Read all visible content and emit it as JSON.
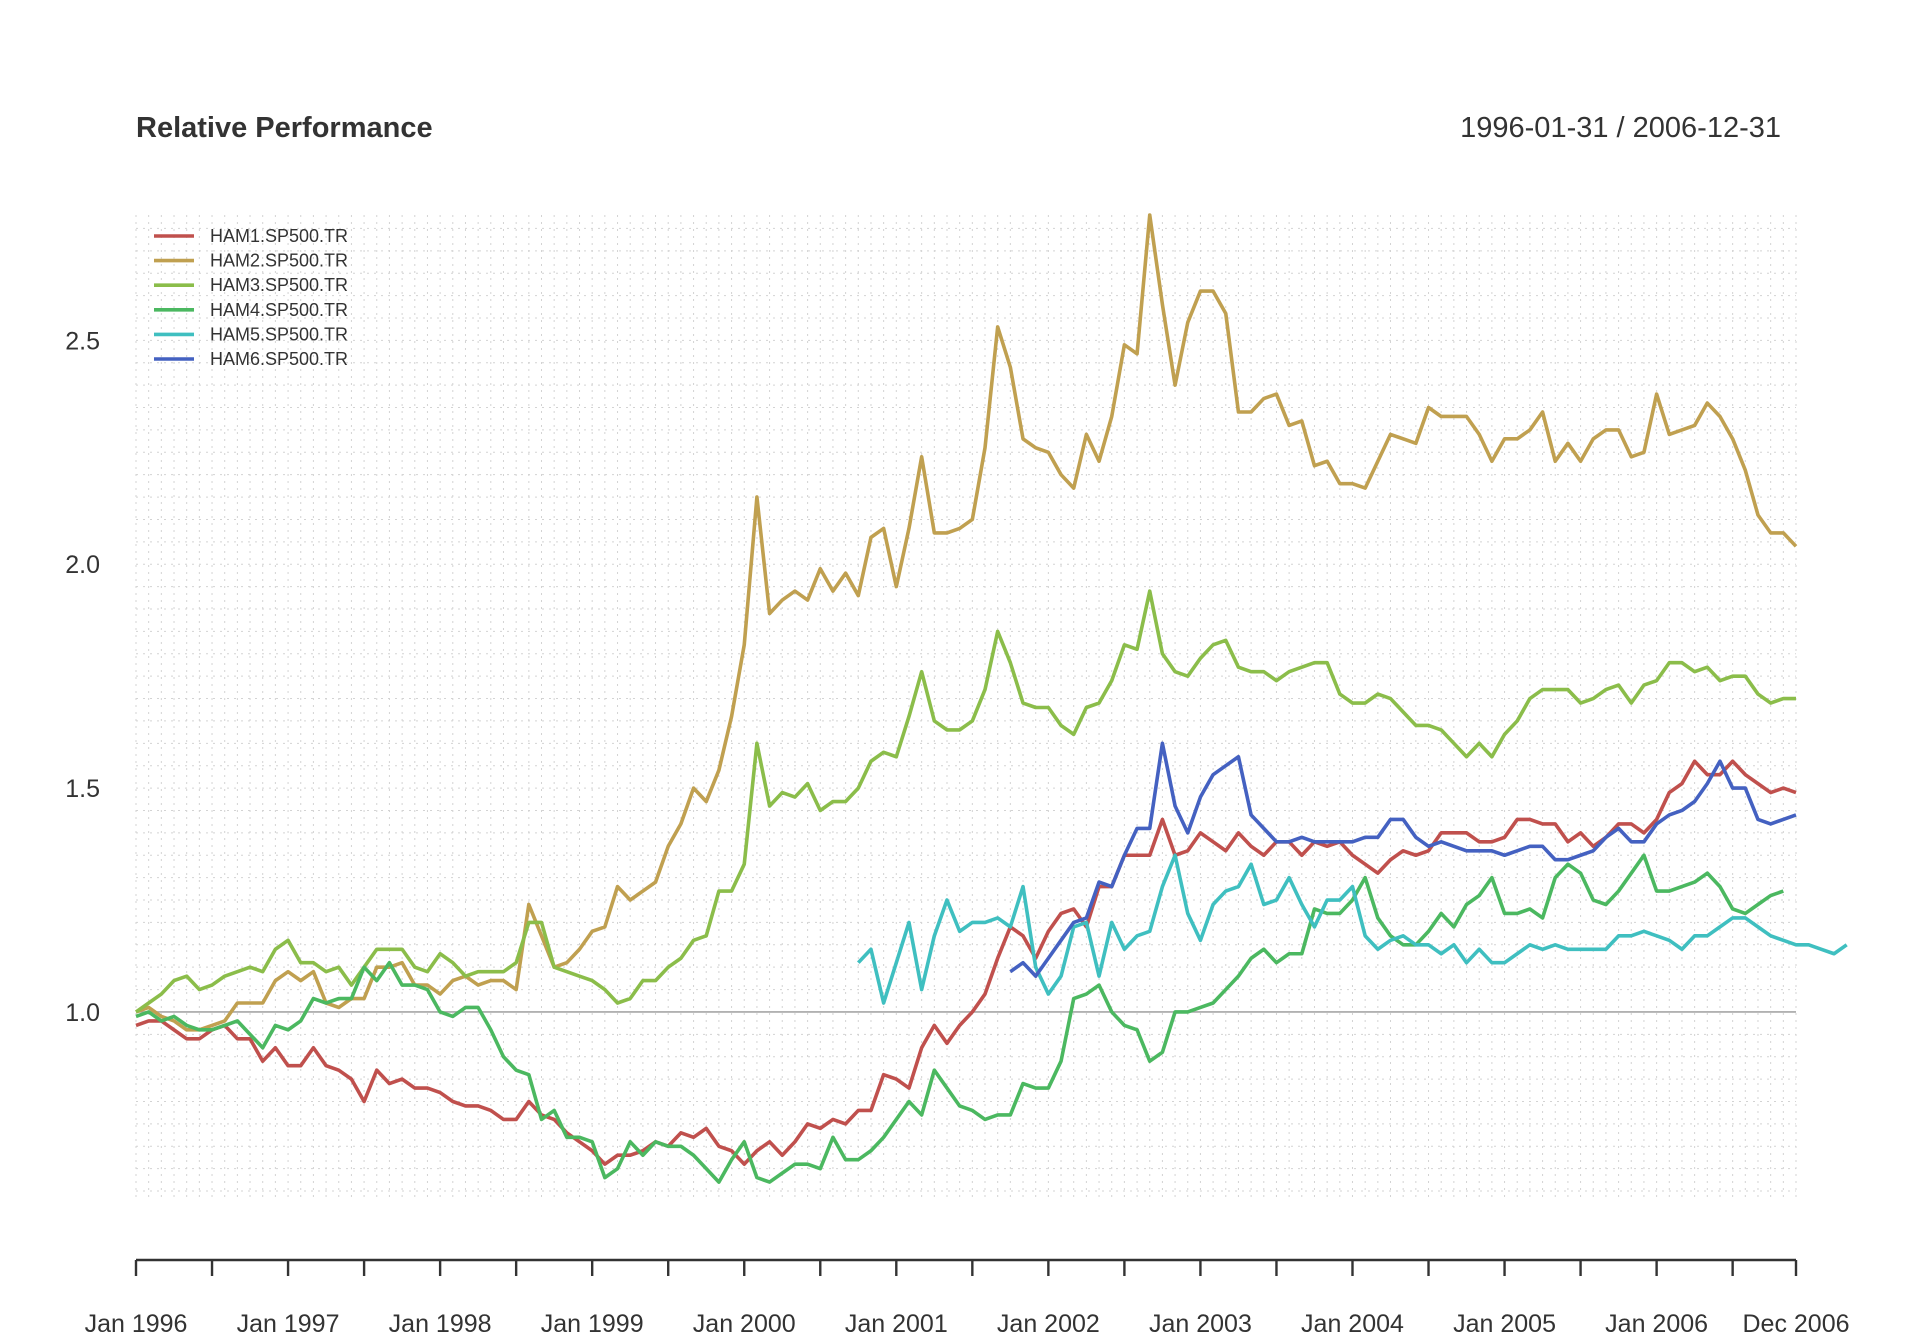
{
  "chart_data": {
    "type": "line",
    "title": "Relative Performance",
    "date_range": "1996-01-31 / 2006-12-31",
    "xlabel": "",
    "ylabel": "",
    "start": "1996-01",
    "x_tick_labels": [
      "Jan 1996",
      "Jan 1997",
      "Jan 1998",
      "Jan 1999",
      "Jan 2000",
      "Jan 2001",
      "Jan 2002",
      "Jan 2003",
      "Jan 2004",
      "Jan 2005",
      "Jan 2006",
      "Dec 2006"
    ],
    "y_ticks": [
      1.0,
      1.5,
      2.0,
      2.5
    ],
    "y_tick_labels": [
      "1.0",
      "1.5",
      "2.0",
      "2.5"
    ],
    "ylim": [
      0.58,
      2.78
    ],
    "reference_line": 1.0,
    "grid": true,
    "legend_position": "top-left",
    "series": [
      {
        "name": "HAM1.SP500.TR",
        "color": "#c0504d",
        "start": "1996-01",
        "values": [
          0.97,
          0.98,
          0.98,
          0.96,
          0.94,
          0.94,
          0.96,
          0.97,
          0.94,
          0.94,
          0.89,
          0.92,
          0.88,
          0.88,
          0.92,
          0.88,
          0.87,
          0.85,
          0.8,
          0.87,
          0.84,
          0.85,
          0.83,
          0.83,
          0.82,
          0.8,
          0.79,
          0.79,
          0.78,
          0.76,
          0.76,
          0.8,
          0.77,
          0.76,
          0.73,
          0.71,
          0.69,
          0.66,
          0.68,
          0.68,
          0.69,
          0.71,
          0.7,
          0.73,
          0.72,
          0.74,
          0.7,
          0.69,
          0.66,
          0.69,
          0.71,
          0.68,
          0.71,
          0.75,
          0.74,
          0.76,
          0.75,
          0.78,
          0.78,
          0.86,
          0.85,
          0.83,
          0.92,
          0.97,
          0.93,
          0.97,
          1.0,
          1.04,
          1.12,
          1.19,
          1.17,
          1.12,
          1.18,
          1.22,
          1.23,
          1.19,
          1.28,
          1.28,
          1.35,
          1.35,
          1.35,
          1.43,
          1.35,
          1.36,
          1.4,
          1.38,
          1.36,
          1.4,
          1.37,
          1.35,
          1.38,
          1.38,
          1.35,
          1.38,
          1.37,
          1.38,
          1.35,
          1.33,
          1.31,
          1.34,
          1.36,
          1.35,
          1.36,
          1.4,
          1.4,
          1.4,
          1.38,
          1.38,
          1.39,
          1.43,
          1.43,
          1.42,
          1.42,
          1.38,
          1.4,
          1.37,
          1.39,
          1.42,
          1.42,
          1.4,
          1.43,
          1.49,
          1.51,
          1.56,
          1.53,
          1.53,
          1.56,
          1.53,
          1.51,
          1.49,
          1.5,
          1.49
        ]
      },
      {
        "name": "HAM2.SP500.TR",
        "color": "#c0a050",
        "start": "1996-01",
        "values": [
          1.0,
          1.01,
          0.99,
          0.98,
          0.96,
          0.96,
          0.97,
          0.98,
          1.02,
          1.02,
          1.02,
          1.07,
          1.09,
          1.07,
          1.09,
          1.02,
          1.01,
          1.03,
          1.03,
          1.1,
          1.1,
          1.11,
          1.06,
          1.06,
          1.04,
          1.07,
          1.08,
          1.06,
          1.07,
          1.07,
          1.05,
          1.24,
          1.17,
          1.1,
          1.11,
          1.14,
          1.18,
          1.19,
          1.28,
          1.25,
          1.27,
          1.29,
          1.37,
          1.42,
          1.5,
          1.47,
          1.54,
          1.66,
          1.82,
          2.15,
          1.89,
          1.92,
          1.94,
          1.92,
          1.99,
          1.94,
          1.98,
          1.93,
          2.06,
          2.08,
          1.95,
          2.08,
          2.24,
          2.07,
          2.07,
          2.08,
          2.1,
          2.26,
          2.53,
          2.44,
          2.28,
          2.26,
          2.25,
          2.2,
          2.17,
          2.29,
          2.23,
          2.33,
          2.49,
          2.47,
          2.78,
          2.58,
          2.4,
          2.54,
          2.61,
          2.61,
          2.56,
          2.34,
          2.34,
          2.37,
          2.38,
          2.31,
          2.32,
          2.22,
          2.23,
          2.18,
          2.18,
          2.17,
          2.23,
          2.29,
          2.28,
          2.27,
          2.35,
          2.33,
          2.33,
          2.33,
          2.29,
          2.23,
          2.28,
          2.28,
          2.3,
          2.34,
          2.23,
          2.27,
          2.23,
          2.28,
          2.3,
          2.3,
          2.24,
          2.25,
          2.38,
          2.29,
          2.3,
          2.31,
          2.36,
          2.33,
          2.28,
          2.21,
          2.11,
          2.07,
          2.07,
          2.04
        ]
      },
      {
        "name": "HAM3.SP500.TR",
        "color": "#8bbd4a",
        "start": "1996-01",
        "values": [
          1.0,
          1.02,
          1.04,
          1.07,
          1.08,
          1.05,
          1.06,
          1.08,
          1.09,
          1.1,
          1.09,
          1.14,
          1.16,
          1.11,
          1.11,
          1.09,
          1.1,
          1.06,
          1.1,
          1.14,
          1.14,
          1.14,
          1.1,
          1.09,
          1.13,
          1.11,
          1.08,
          1.09,
          1.09,
          1.09,
          1.11,
          1.2,
          1.2,
          1.1,
          1.09,
          1.08,
          1.07,
          1.05,
          1.02,
          1.03,
          1.07,
          1.07,
          1.1,
          1.12,
          1.16,
          1.17,
          1.27,
          1.27,
          1.33,
          1.6,
          1.46,
          1.49,
          1.48,
          1.51,
          1.45,
          1.47,
          1.47,
          1.5,
          1.56,
          1.58,
          1.57,
          1.66,
          1.76,
          1.65,
          1.63,
          1.63,
          1.65,
          1.72,
          1.85,
          1.78,
          1.69,
          1.68,
          1.68,
          1.64,
          1.62,
          1.68,
          1.69,
          1.74,
          1.82,
          1.81,
          1.94,
          1.8,
          1.76,
          1.75,
          1.79,
          1.82,
          1.83,
          1.77,
          1.76,
          1.76,
          1.74,
          1.76,
          1.77,
          1.78,
          1.78,
          1.71,
          1.69,
          1.69,
          1.71,
          1.7,
          1.67,
          1.64,
          1.64,
          1.63,
          1.6,
          1.57,
          1.6,
          1.57,
          1.62,
          1.65,
          1.7,
          1.72,
          1.72,
          1.72,
          1.69,
          1.7,
          1.72,
          1.73,
          1.69,
          1.73,
          1.74,
          1.78,
          1.78,
          1.76,
          1.77,
          1.74,
          1.75,
          1.75,
          1.71,
          1.69,
          1.7,
          1.7
        ]
      },
      {
        "name": "HAM4.SP500.TR",
        "color": "#4bb860",
        "start": "1996-01",
        "values": [
          0.99,
          1.0,
          0.98,
          0.99,
          0.97,
          0.96,
          0.96,
          0.97,
          0.98,
          0.95,
          0.92,
          0.97,
          0.96,
          0.98,
          1.03,
          1.02,
          1.03,
          1.03,
          1.1,
          1.07,
          1.11,
          1.06,
          1.06,
          1.05,
          1.0,
          0.99,
          1.01,
          1.01,
          0.96,
          0.9,
          0.87,
          0.86,
          0.76,
          0.78,
          0.72,
          0.72,
          0.71,
          0.63,
          0.65,
          0.71,
          0.68,
          0.71,
          0.7,
          0.7,
          0.68,
          0.65,
          0.62,
          0.67,
          0.71,
          0.63,
          0.62,
          0.64,
          0.66,
          0.66,
          0.65,
          0.72,
          0.67,
          0.67,
          0.69,
          0.72,
          0.76,
          0.8,
          0.77,
          0.87,
          0.83,
          0.79,
          0.78,
          0.76,
          0.77,
          0.77,
          0.84,
          0.83,
          0.83,
          0.89,
          1.03,
          1.04,
          1.06,
          1.0,
          0.97,
          0.96,
          0.89,
          0.91,
          1.0,
          1.0,
          1.01,
          1.02,
          1.05,
          1.08,
          1.12,
          1.14,
          1.11,
          1.13,
          1.13,
          1.23,
          1.22,
          1.22,
          1.25,
          1.3,
          1.21,
          1.17,
          1.15,
          1.15,
          1.18,
          1.22,
          1.19,
          1.24,
          1.26,
          1.3,
          1.22,
          1.22,
          1.23,
          1.21,
          1.3,
          1.33,
          1.31,
          1.25,
          1.24,
          1.27,
          1.31,
          1.35,
          1.27,
          1.27,
          1.28,
          1.29,
          1.31,
          1.28,
          1.23,
          1.22,
          1.24,
          1.26,
          1.27
        ]
      },
      {
        "name": "HAM5.SP500.TR",
        "color": "#3fbfc0",
        "start": "2000-10",
        "values": [
          1.11,
          1.14,
          1.02,
          1.11,
          1.2,
          1.05,
          1.17,
          1.25,
          1.18,
          1.2,
          1.2,
          1.21,
          1.19,
          1.28,
          1.1,
          1.04,
          1.08,
          1.19,
          1.2,
          1.08,
          1.2,
          1.14,
          1.17,
          1.18,
          1.28,
          1.35,
          1.22,
          1.16,
          1.24,
          1.27,
          1.28,
          1.33,
          1.24,
          1.25,
          1.3,
          1.24,
          1.19,
          1.25,
          1.25,
          1.28,
          1.17,
          1.14,
          1.16,
          1.17,
          1.15,
          1.15,
          1.13,
          1.15,
          1.11,
          1.14,
          1.11,
          1.11,
          1.13,
          1.15,
          1.14,
          1.15,
          1.14,
          1.14,
          1.14,
          1.14,
          1.17,
          1.17,
          1.18,
          1.17,
          1.16,
          1.14,
          1.17,
          1.17,
          1.19,
          1.21,
          1.21,
          1.19,
          1.17,
          1.16,
          1.15,
          1.15,
          1.14,
          1.13,
          1.15
        ]
      },
      {
        "name": "HAM6.SP500.TR",
        "color": "#4461c1",
        "start": "2001-10",
        "values": [
          1.09,
          1.11,
          1.08,
          1.12,
          1.16,
          1.2,
          1.21,
          1.29,
          1.28,
          1.35,
          1.41,
          1.41,
          1.6,
          1.46,
          1.4,
          1.48,
          1.53,
          1.55,
          1.57,
          1.44,
          1.41,
          1.38,
          1.38,
          1.39,
          1.38,
          1.38,
          1.38,
          1.38,
          1.39,
          1.39,
          1.43,
          1.43,
          1.39,
          1.37,
          1.38,
          1.37,
          1.36,
          1.36,
          1.36,
          1.35,
          1.36,
          1.37,
          1.37,
          1.34,
          1.34,
          1.35,
          1.36,
          1.39,
          1.41,
          1.38,
          1.38,
          1.42,
          1.44,
          1.45,
          1.47,
          1.51,
          1.56,
          1.5,
          1.5,
          1.43,
          1.42,
          1.43,
          1.44
        ]
      }
    ]
  }
}
